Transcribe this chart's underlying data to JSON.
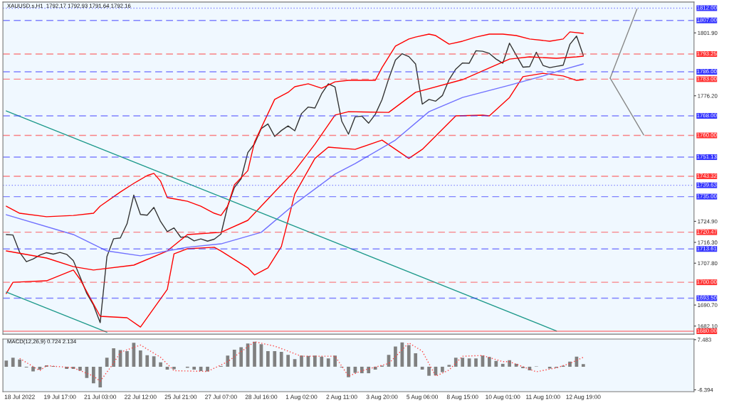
{
  "chart_data": [
    {
      "type": "line",
      "title": "XAUUSD.s,H1  1792.17 1792.93 1791.64 1792.16",
      "series": [
        {
          "values": [
            1719.5,
            1719.3,
            1712.2,
            1708.4,
            1709.5,
            1711.1,
            1712.1,
            1711.5,
            1712.2,
            1711.4,
            1708.8,
            1702.2,
            1695.4,
            1690.7,
            1683.5,
            1710.5,
            1717.8,
            1718.1,
            1723.9,
            1735.6,
            1727.7,
            1727.4,
            1730.6,
            1724.8,
            1720.7,
            1722.2,
            1718.4,
            1718.6,
            1716.9,
            1717.7,
            1716.8,
            1717.6,
            1719.7,
            1731.1,
            1738.7,
            1742.3,
            1753.0,
            1756.6,
            1762.8,
            1764.7,
            1759.6,
            1762.0,
            1763.9,
            1761.9,
            1768.9,
            1771.6,
            1771.2,
            1777.0,
            1781.1,
            1779.8,
            1765.8,
            1760.5,
            1767.6,
            1767.9,
            1765.0,
            1768.6,
            1774.6,
            1783.2,
            1790.8,
            1793.4,
            1792.2,
            1789.2,
            1772.8,
            1774.7,
            1774.0,
            1776.3,
            1782.8,
            1787.1,
            1789.6,
            1789.5,
            1794.6,
            1794.4,
            1793.5,
            1791.2,
            1789.5,
            1797.7,
            1792.8,
            1787.9,
            1788.1,
            1794.0,
            1788.6,
            1787.7,
            1788.2,
            1788.7,
            1797.2,
            1800.6,
            1792.7,
            null,
            null,
            null,
            null,
            null,
            null,
            null,
            null,
            null,
            null,
            null,
            null,
            null,
            null,
            null,
            null
          ],
          "color": "#333333"
        },
        {
          "values": [
            1731.1,
            null,
            1728.2,
            null,
            null,
            null,
            1726.8,
            null,
            null,
            null,
            1727.3,
            null,
            null,
            1728.2,
            1731.1,
            null,
            null,
            1736.9,
            null,
            1740.4,
            null,
            1743.6,
            1744.5,
            1741.3,
            1734.6,
            null,
            null,
            1733.1,
            null,
            1731.1,
            null,
            1728.2,
            1727.3,
            1731.1,
            1739.8,
            null,
            1745.6,
            1757.3,
            null,
            1768.9,
            1774.7,
            null,
            1777.6,
            1779.9,
            null,
            1781.1,
            null,
            1779.3,
            null,
            1781.9,
            null,
            1782.5,
            null,
            null,
            null,
            1782.5,
            1787.7,
            null,
            1796.5,
            null,
            1799.4,
            1800.2,
            null,
            1801.4,
            1800.8,
            null,
            1797.3,
            null,
            1798.5,
            null,
            1800.2,
            null,
            1801.4,
            null,
            1801.4,
            null,
            1800.8,
            null,
            1799.4,
            null,
            null,
            1798.5,
            null,
            1799.4,
            1802.3,
            null,
            1801.7,
            null,
            null,
            null,
            null,
            null,
            null,
            null,
            null,
            null,
            null,
            null,
            null,
            null,
            null,
            null,
            null
          ],
          "color": "#ff0000"
        },
        {
          "values": [
            1712.8,
            null,
            null,
            null,
            null,
            null,
            1709.9,
            null,
            null,
            null,
            1706.4,
            null,
            null,
            1705.0,
            null,
            null,
            null,
            null,
            null,
            1707.0,
            null,
            null,
            null,
            null,
            1712.8,
            null,
            null,
            1719.5,
            null,
            null,
            null,
            null,
            1720.4,
            null,
            null,
            null,
            1725.3,
            null,
            null,
            1734.0,
            null,
            null,
            null,
            1745.6,
            null,
            null,
            1756.4,
            null,
            null,
            1768.3,
            null,
            1769.7,
            null,
            null,
            null,
            null,
            null,
            1769.4,
            null,
            null,
            null,
            1777.6,
            null,
            null,
            null,
            null,
            null,
            null,
            1782.8,
            null,
            null,
            null,
            null,
            null,
            null,
            1791.2,
            null,
            null,
            1792.1,
            null,
            null,
            null,
            1791.5,
            null,
            null,
            1792.1,
            1792.4,
            null,
            null,
            null,
            null,
            null,
            null,
            null,
            null,
            null,
            null,
            null,
            null,
            null,
            null,
            null,
            null
          ],
          "color": "#ff0000"
        },
        {
          "values": [
            1695.4,
            1700.0,
            null,
            null,
            null,
            null,
            1700.6,
            null,
            null,
            null,
            1705.0,
            1701.2,
            null,
            null,
            1686.1,
            null,
            null,
            null,
            1685.5,
            null,
            1681.7,
            null,
            null,
            null,
            1697.1,
            1711.6,
            null,
            1713.7,
            null,
            null,
            null,
            1714.3,
            1712.8,
            null,
            null,
            null,
            1705.9,
            1703.0,
            null,
            1705.9,
            null,
            1714.6,
            null,
            1736.1,
            null,
            null,
            1750.6,
            null,
            1755.2,
            null,
            null,
            null,
            1754.3,
            null,
            null,
            null,
            1758.1,
            null,
            null,
            null,
            1750.6,
            null,
            1754.3,
            null,
            null,
            null,
            null,
            1768.0,
            null,
            null,
            null,
            1768.3,
            1768.0,
            null,
            null,
            1775.5,
            null,
            1784.0,
            null,
            null,
            1785.4,
            null,
            null,
            1784.3,
            null,
            1782.5,
            1782.8,
            null,
            null,
            null,
            null,
            null,
            null,
            null,
            null,
            null,
            null,
            null,
            null,
            null,
            null,
            null,
            null
          ],
          "color": "#ff0000"
        },
        {
          "values": [
            1727.6,
            null,
            null,
            null,
            null,
            null,
            null,
            null,
            null,
            null,
            1719.5,
            null,
            null,
            null,
            null,
            1712.8,
            null,
            null,
            null,
            null,
            1710.8,
            null,
            null,
            null,
            null,
            null,
            null,
            1714.3,
            null,
            null,
            null,
            null,
            1715.7,
            null,
            null,
            null,
            null,
            null,
            1720.4,
            null,
            null,
            null,
            null,
            1732.0,
            null,
            null,
            null,
            null,
            null,
            1744.2,
            null,
            null,
            1748.5,
            null,
            null,
            null,
            null,
            null,
            1758.1,
            null,
            null,
            null,
            null,
            1769.7,
            null,
            null,
            null,
            null,
            1775.5,
            null,
            null,
            null,
            null,
            null,
            null,
            1780.5,
            null,
            null,
            null,
            null,
            1784.3,
            null,
            null,
            1786.9,
            null,
            null,
            1789.2,
            null,
            null,
            null,
            null,
            null,
            null,
            null,
            null,
            null,
            null,
            null,
            null,
            null,
            null,
            null,
            null
          ],
          "color": "#7070ff"
        },
        {
          "values": [
            1770.0,
            null,
            null,
            null,
            null,
            null,
            null,
            null,
            null,
            null,
            null,
            null,
            null,
            null,
            null,
            null,
            null,
            null,
            null,
            null,
            null,
            null,
            null,
            null,
            null,
            null,
            null,
            null,
            null,
            null,
            null,
            null,
            null,
            null,
            null,
            null,
            null,
            null,
            null,
            null,
            null,
            null,
            null,
            null,
            null,
            null,
            null,
            null,
            null,
            null,
            null,
            null,
            null,
            null,
            null,
            null,
            null,
            null,
            null,
            null,
            null,
            null,
            null,
            null,
            null,
            null,
            null,
            null,
            null,
            null,
            null,
            null,
            null,
            null,
            null,
            null,
            null,
            null,
            null,
            null,
            null,
            null,
            1680.1,
            null,
            null,
            null,
            null,
            null,
            null,
            null,
            null,
            null,
            null,
            null,
            null,
            null,
            null,
            null,
            null,
            null,
            null,
            null,
            null
          ],
          "color": "#1f9a8c"
        },
        {
          "values": [
            1696.0,
            null,
            null,
            null,
            null,
            null,
            null,
            null,
            null,
            null,
            null,
            null,
            null,
            null,
            null,
            1679.6,
            null,
            null,
            null,
            null,
            null,
            null,
            null,
            null,
            null,
            null,
            null,
            null,
            null,
            null,
            null,
            null,
            null,
            null,
            null,
            null,
            null,
            null,
            null,
            null,
            null,
            null,
            null,
            null,
            null,
            null,
            null,
            null,
            null,
            null,
            null,
            null,
            null,
            null,
            null,
            null,
            null,
            null,
            null,
            null,
            null,
            null,
            null,
            null,
            null,
            null,
            null,
            null,
            null,
            null,
            null,
            null,
            null,
            null,
            null,
            null,
            null,
            null,
            null,
            null,
            null,
            null,
            null,
            null,
            null,
            null,
            null,
            null,
            null,
            null,
            null,
            null,
            null,
            null,
            null,
            null,
            null,
            null,
            null,
            null,
            null,
            null,
            null
          ],
          "color": "#1f9a8c"
        },
        {
          "values": [
            null,
            null,
            null,
            null,
            null,
            null,
            null,
            null,
            null,
            null,
            null,
            null,
            null,
            null,
            null,
            null,
            null,
            null,
            null,
            null,
            null,
            null,
            null,
            null,
            null,
            null,
            null,
            null,
            null,
            null,
            null,
            null,
            null,
            null,
            null,
            null,
            null,
            null,
            null,
            null,
            null,
            null,
            null,
            null,
            null,
            null,
            null,
            null,
            null,
            null,
            null,
            null,
            null,
            null,
            null,
            null,
            null,
            null,
            null,
            null,
            null,
            null,
            null,
            null,
            null,
            null,
            null,
            null,
            null,
            null,
            null,
            null,
            null,
            null,
            null,
            null,
            null,
            null,
            null,
            null,
            null,
            null,
            null,
            null,
            null,
            null,
            null,
            null,
            null,
            null,
            1783.4,
            null,
            null,
            null,
            1811.6,
            null,
            null,
            null,
            null,
            null,
            null,
            null,
            null
          ],
          "color": "#888888"
        },
        {
          "values": [
            null,
            null,
            null,
            null,
            null,
            null,
            null,
            null,
            null,
            null,
            null,
            null,
            null,
            null,
            null,
            null,
            null,
            null,
            null,
            null,
            null,
            null,
            null,
            null,
            null,
            null,
            null,
            null,
            null,
            null,
            null,
            null,
            null,
            null,
            null,
            null,
            null,
            null,
            null,
            null,
            null,
            null,
            null,
            null,
            null,
            null,
            null,
            null,
            null,
            null,
            null,
            null,
            null,
            null,
            null,
            null,
            null,
            null,
            null,
            null,
            null,
            null,
            null,
            null,
            null,
            null,
            null,
            null,
            null,
            null,
            null,
            null,
            null,
            null,
            null,
            null,
            null,
            null,
            null,
            null,
            null,
            null,
            null,
            null,
            null,
            null,
            null,
            null,
            null,
            null,
            1783.4,
            null,
            null,
            null,
            null,
            1760.2,
            null,
            null,
            null,
            null,
            null,
            null,
            null
          ],
          "color": "#888888"
        }
      ],
      "ref_lines": [
        {
          "axis": "y",
          "value": 1812.0,
          "label": "1812.00",
          "color": "#3333ff",
          "line_style": "dotted"
        },
        {
          "axis": "y",
          "value": 1807.0,
          "label": "1807.00",
          "color": "#3333ff",
          "line_style": "dashed"
        },
        {
          "axis": "y",
          "value": 1793.25,
          "label": "1793.25",
          "color": "#ff3333",
          "line_style": "dashed"
        },
        {
          "axis": "y",
          "value": 1786.0,
          "label": "1786.00",
          "color": "#3333ff",
          "line_style": "dashed"
        },
        {
          "axis": "y",
          "value": 1783.0,
          "label": "1783.00",
          "color": "#ff3333",
          "line_style": "dashed"
        },
        {
          "axis": "y",
          "value": 1768.0,
          "label": "1768.00",
          "color": "#3333ff",
          "line_style": "dashed"
        },
        {
          "axis": "y",
          "value": 1760.0,
          "label": "1760.00",
          "color": "#ff3333",
          "line_style": "dashed"
        },
        {
          "axis": "y",
          "value": 1751.13,
          "label": "1751.13",
          "color": "#3333ff",
          "line_style": "dashed"
        },
        {
          "axis": "y",
          "value": 1743.32,
          "label": "1743.32",
          "color": "#ff3333",
          "line_style": "dashed"
        },
        {
          "axis": "y",
          "value": 1739.63,
          "label": "1739.63",
          "color": "#3333ff",
          "line_style": "dotted"
        },
        {
          "axis": "y",
          "value": 1735.0,
          "label": "1735.00",
          "color": "#3333ff",
          "line_style": "dashed"
        },
        {
          "axis": "y",
          "value": 1720.47,
          "label": "1720.47",
          "color": "#ff3333",
          "line_style": "dashed"
        },
        {
          "axis": "y",
          "value": 1713.61,
          "label": "1713.61",
          "color": "#3333ff",
          "line_style": "dashed"
        },
        {
          "axis": "y",
          "value": 1700.0,
          "label": "1700.00",
          "color": "#ff3333",
          "line_style": "dashed"
        },
        {
          "axis": "y",
          "value": 1693.5,
          "label": "1693.50",
          "color": "#3333ff",
          "line_style": "dashed"
        },
        {
          "axis": "y",
          "value": 1680.0,
          "label": "1680.00",
          "color": "#ff3333",
          "line_style": "solid"
        }
      ],
      "ylim": [
        1678.8,
        1814.5
      ],
      "yticks": [
        {
          "value": 1801.9,
          "label": "1801.90"
        },
        {
          "value": 1776.2,
          "label": "1776.20"
        },
        {
          "value": 1724.9,
          "label": "1724.90"
        },
        {
          "value": 1716.3,
          "label": "1716.30"
        },
        {
          "value": 1707.8,
          "label": "1707.80"
        },
        {
          "value": 1690.7,
          "label": "1690.70"
        },
        {
          "value": 1682.1,
          "label": "1682.10"
        }
      ],
      "tick_labels": "y"
    },
    {
      "type": "bar",
      "title": "MACD(12,26,9) 0.724 2.134",
      "categories": [
        null,
        null,
        "18 Jul 2022",
        null,
        null,
        null,
        null,
        null,
        "19 Jul 17:00",
        null,
        null,
        null,
        null,
        null,
        "21 Jul 03:00",
        null,
        null,
        null,
        null,
        null,
        "22 Jul 12:00",
        null,
        null,
        null,
        null,
        null,
        "25 Jul 21:00",
        null,
        null,
        null,
        null,
        null,
        "27 Jul 07:00",
        null,
        null,
        null,
        null,
        null,
        "28 Jul 16:00",
        null,
        null,
        null,
        null,
        null,
        "1 Aug 02:00",
        null,
        null,
        null,
        null,
        null,
        "2 Aug 11:00",
        null,
        null,
        null,
        null,
        null,
        "3 Aug 20:00",
        null,
        null,
        null,
        null,
        null,
        "5 Aug 06:00",
        null,
        null,
        null,
        null,
        null,
        "8 Aug 15:00",
        null,
        null,
        null,
        null,
        null,
        "10 Aug 01:00",
        null,
        null,
        null,
        null,
        null,
        "11 Aug 10:00",
        null,
        null,
        null,
        null,
        null,
        "12 Aug 19:00",
        null,
        null,
        null,
        null,
        null,
        null,
        null,
        null,
        null,
        null,
        null,
        null,
        null,
        null,
        null,
        null
      ],
      "series": [
        {
          "type": "bar",
          "values": [
            1.7,
            2.5,
            2.0,
            -0.2,
            -1.3,
            -0.8,
            0.4,
            0.2,
            0,
            -0.6,
            -0.6,
            -1.1,
            -3.1,
            -4.6,
            -5.7,
            2.5,
            5.1,
            4.6,
            4.3,
            6.6,
            4.5,
            3.2,
            2.9,
            1.2,
            -0.8,
            -0.7,
            0,
            -0.3,
            -0.8,
            -1.2,
            -1.3,
            0,
            0.2,
            3.1,
            4.7,
            5.4,
            6.4,
            6.9,
            6.2,
            4.3,
            4.3,
            4.1,
            3.3,
            2.1,
            3.1,
            3.0,
            3.1,
            2.8,
            2.3,
            3.1,
            -0.2,
            -2.9,
            -1.7,
            -1.8,
            -1.8,
            -0.8,
            0.3,
            3.3,
            5.6,
            6.7,
            6.0,
            3.7,
            -0.8,
            -2.5,
            -2.4,
            -1.5,
            0.5,
            2.5,
            2.5,
            2.3,
            2.3,
            3.1,
            2.7,
            1.6,
            0.8,
            1.8,
            0.8,
            -0.4,
            -1.0,
            0.1,
            0,
            -0.5,
            -0.3,
            0.3,
            1.4,
            2.8,
            0.7,
            null,
            null,
            null,
            null,
            null,
            null,
            null,
            null,
            null,
            null,
            null,
            null,
            null,
            null,
            null,
            null
          ],
          "color": "#808080"
        },
        {
          "type": "line",
          "values": [
            null,
            null,
            2.3,
            null,
            null,
            -1.1,
            0.3,
            null,
            null,
            null,
            -0.3,
            null,
            null,
            -2.6,
            -4.0,
            null,
            1.0,
            4.0,
            null,
            null,
            6.0,
            null,
            null,
            2.6,
            null,
            -1.1,
            null,
            null,
            null,
            null,
            -1.3,
            null,
            null,
            1.4,
            null,
            null,
            null,
            6.9,
            null,
            null,
            5.7,
            null,
            null,
            null,
            2.9,
            null,
            null,
            null,
            null,
            2.9,
            null,
            -2.6,
            null,
            -1.1,
            null,
            null,
            null,
            0.9,
            null,
            null,
            6.6,
            null,
            4.3,
            null,
            -2.6,
            null,
            -0.9,
            null,
            2.9,
            null,
            null,
            3.1,
            null,
            null,
            1.4,
            1.4,
            null,
            null,
            null,
            -1.4,
            null,
            null,
            -0.3,
            null,
            0.9,
            null,
            2.6,
            null,
            null,
            null,
            null,
            null,
            null,
            null,
            null,
            null,
            null,
            null,
            null,
            null,
            null,
            null,
            null
          ],
          "color": "#ff4040",
          "line_style": "dotted"
        }
      ],
      "ylim": [
        -6.9,
        7.65
      ],
      "yticks": [
        7.483,
        -6.394
      ]
    }
  ]
}
